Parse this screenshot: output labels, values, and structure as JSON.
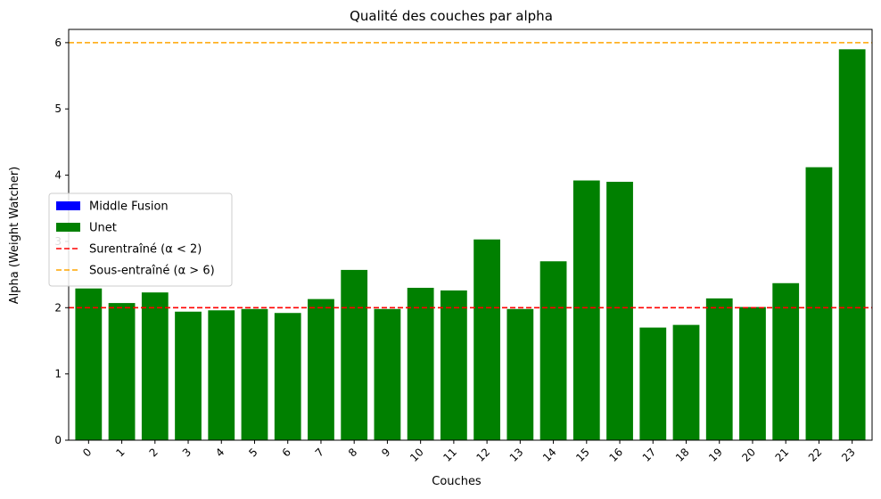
{
  "chart_data": {
    "type": "bar",
    "title": "Qualité des couches par alpha",
    "xlabel": "Couches",
    "ylabel": "Alpha (Weight Watcher)",
    "categories": [
      "0",
      "1",
      "2",
      "3",
      "4",
      "5",
      "6",
      "7",
      "8",
      "9",
      "10",
      "11",
      "12",
      "13",
      "14",
      "15",
      "16",
      "17",
      "18",
      "19",
      "20",
      "21",
      "22",
      "23"
    ],
    "values": [
      2.29,
      2.07,
      2.23,
      1.94,
      1.96,
      1.98,
      1.92,
      2.13,
      2.57,
      1.98,
      2.3,
      2.26,
      3.03,
      1.98,
      2.7,
      3.92,
      3.9,
      1.7,
      1.74,
      2.14,
      2.01,
      2.37,
      4.12,
      5.9
    ],
    "bar_color": "#008000",
    "ylim": [
      0,
      6.2
    ],
    "yticks": [
      0,
      1,
      2,
      3,
      4,
      5,
      6
    ],
    "grid": false,
    "legend_position": "center-left",
    "legend": [
      {
        "label": "Middle Fusion",
        "kind": "patch",
        "color": "#0000ff"
      },
      {
        "label": "Unet",
        "kind": "patch",
        "color": "#008000"
      },
      {
        "label": "Surentraîné (α < 2)",
        "kind": "dashed-line",
        "color": "#ff0000"
      },
      {
        "label": "Sous-entraîné (α > 6)",
        "kind": "dashed-line",
        "color": "#ffa500"
      }
    ],
    "reference_lines": [
      {
        "y": 2,
        "color": "#ff0000",
        "style": "dashed"
      },
      {
        "y": 6,
        "color": "#ffa500",
        "style": "dashed"
      }
    ]
  }
}
